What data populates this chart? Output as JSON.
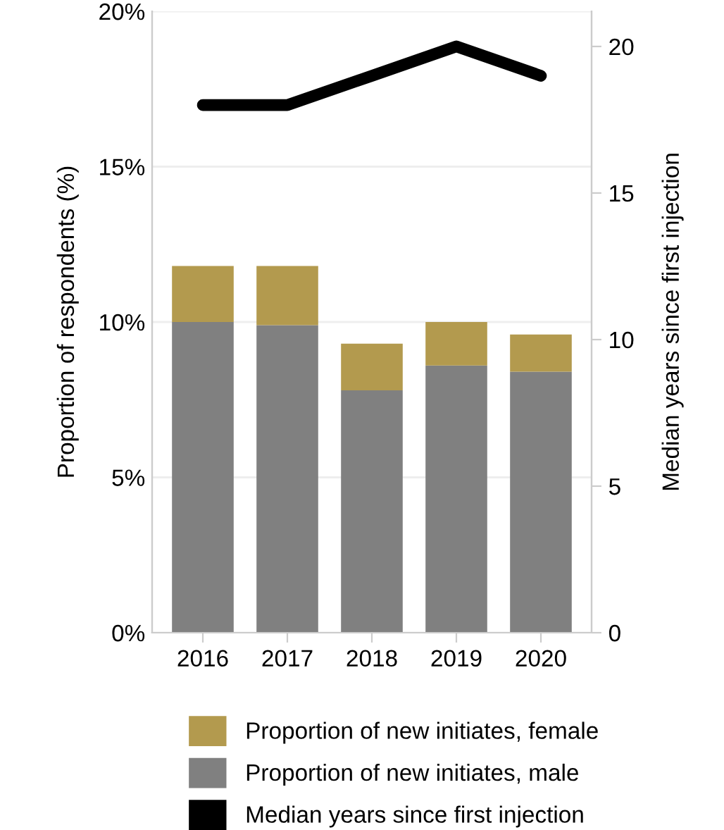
{
  "chart_data": {
    "type": "bar",
    "stacked": true,
    "categories": [
      "2016",
      "2017",
      "2018",
      "2019",
      "2020"
    ],
    "series": [
      {
        "name": "Proportion of new initiates, male",
        "color": "#808080",
        "values": [
          10.0,
          9.9,
          7.8,
          8.6,
          8.4
        ]
      },
      {
        "name": "Proportion of new initiates, female",
        "color": "#b39a4e",
        "values": [
          1.8,
          1.9,
          1.5,
          1.4,
          1.2
        ]
      },
      {
        "name": "Median years since first injection",
        "type": "line",
        "axis": "y2",
        "color": "#000000",
        "values": [
          18,
          18,
          19,
          20,
          19
        ]
      }
    ],
    "ylabel": "Proportion of respondents (%)",
    "y2label": "Median years since first injection",
    "ylim": [
      0,
      20
    ],
    "yticks": [
      {
        "value": 0,
        "label": "0%"
      },
      {
        "value": 5,
        "label": "5%"
      },
      {
        "value": 10,
        "label": "10%"
      },
      {
        "value": 15,
        "label": "15%"
      },
      {
        "value": 20,
        "label": "20%"
      }
    ],
    "y2lim": [
      0,
      21.2
    ],
    "y2ticks": [
      0,
      5,
      10,
      15,
      20
    ],
    "grid": "y",
    "legend": "bottom",
    "marker": "none",
    "line_style": "solid"
  }
}
